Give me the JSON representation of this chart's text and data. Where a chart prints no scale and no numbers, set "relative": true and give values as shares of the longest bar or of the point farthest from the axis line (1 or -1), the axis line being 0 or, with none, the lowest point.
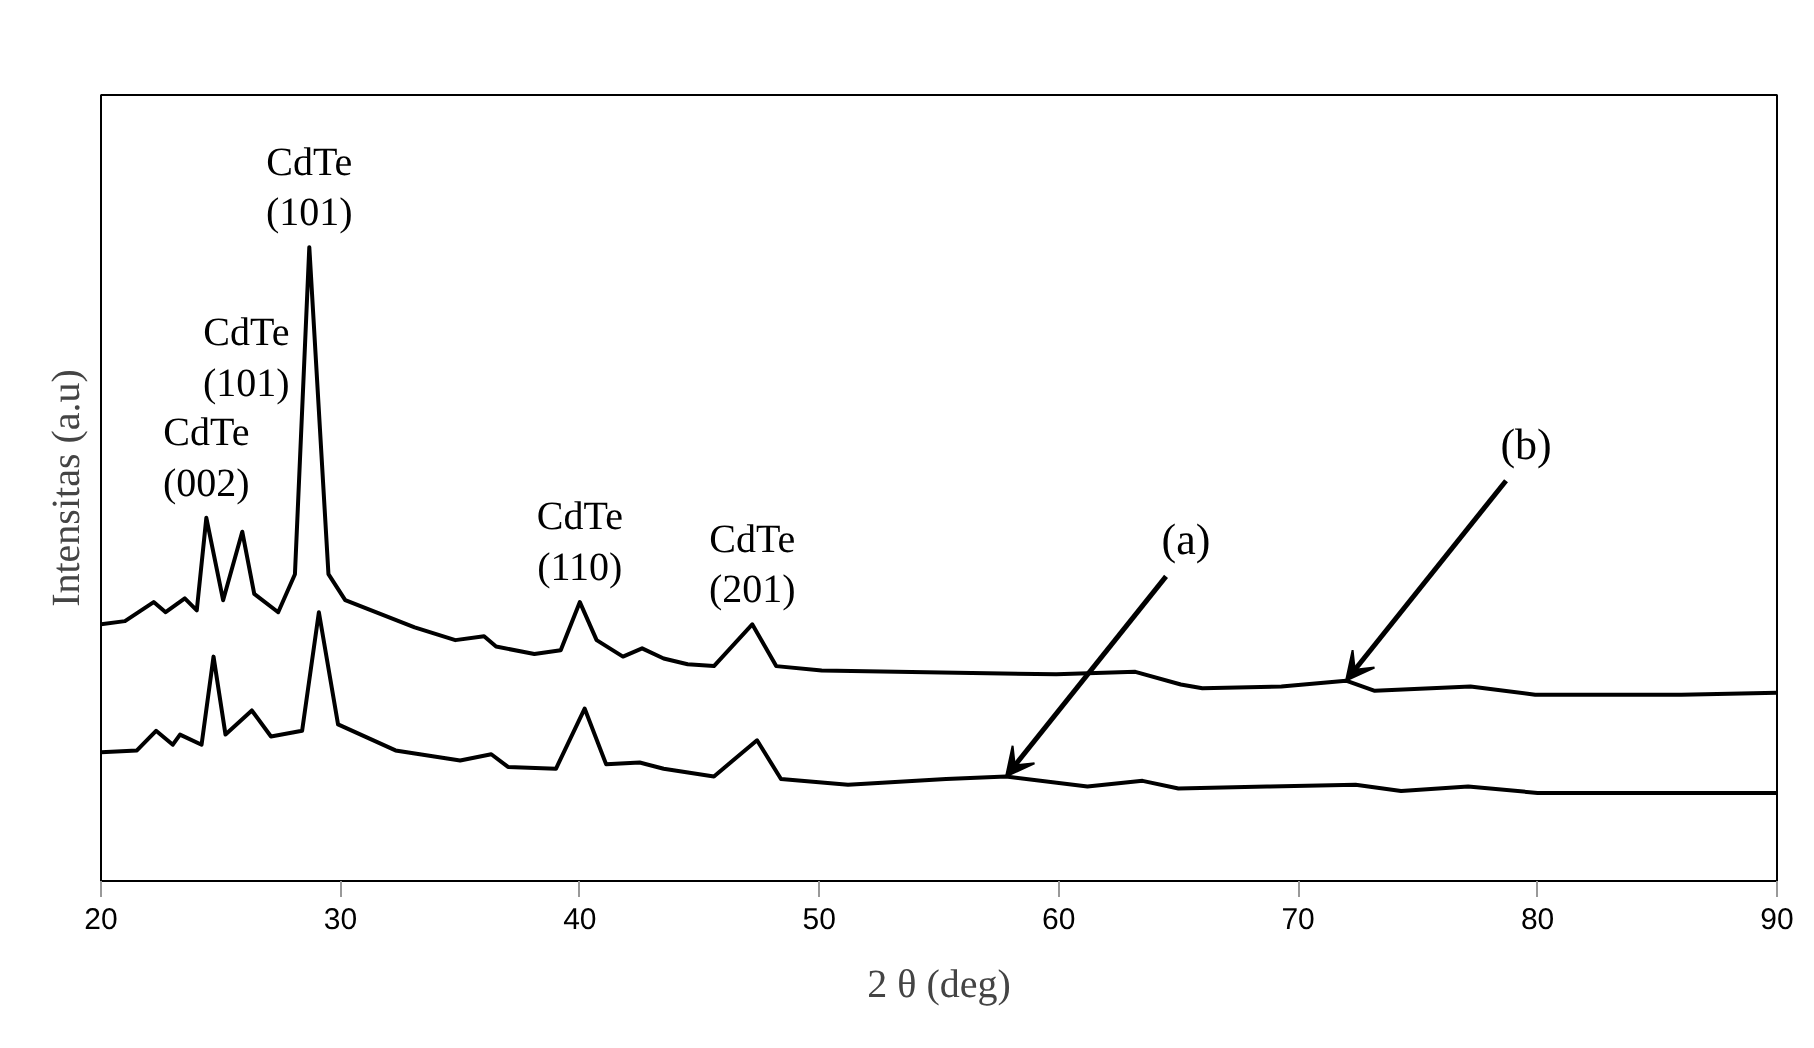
{
  "chart_data": {
    "type": "line",
    "relative": true,
    "xlabel": "2 θ (deg)",
    "ylabel": "Intensitas (a.u)",
    "xlim": [
      20,
      90
    ],
    "xticks": [
      20,
      30,
      40,
      50,
      60,
      70,
      80,
      90
    ],
    "grid": false,
    "marker": "none",
    "line_style": "solid",
    "series": [
      {
        "color": "#000000",
        "x": [
          20,
          21,
          22.2,
          22.7,
          23.5,
          24.0,
          24.4,
          25.1,
          25.9,
          26.4,
          27.4,
          28.1,
          28.7,
          29.5,
          30.2,
          33.1,
          34.8,
          36.0,
          36.5,
          38.1,
          39.2,
          40.0,
          40.7,
          41.8,
          42.6,
          43.5,
          44.5,
          45.6,
          47.2,
          48.2,
          50.1,
          55.1,
          59.9,
          63.2,
          65.1,
          66.0,
          69.3,
          72.0,
          73.2,
          77.2,
          79.9,
          86,
          90
        ],
        "values": [
          0.405,
          0.41,
          0.44,
          0.424,
          0.446,
          0.427,
          0.573,
          0.443,
          0.551,
          0.453,
          0.424,
          0.484,
          1.0,
          0.484,
          0.443,
          0.4,
          0.38,
          0.386,
          0.37,
          0.358,
          0.364,
          0.44,
          0.38,
          0.354,
          0.367,
          0.351,
          0.342,
          0.339,
          0.405,
          0.339,
          0.332,
          0.329,
          0.326,
          0.33,
          0.31,
          0.304,
          0.307,
          0.316,
          0.3,
          0.307,
          0.294,
          0.294,
          0.297
        ]
      },
      {
        "color": "#000000",
        "x": [
          20,
          21.5,
          22.3,
          23.0,
          23.3,
          24.2,
          24.7,
          25.2,
          26.3,
          27.1,
          28.4,
          29.1,
          29.9,
          32.3,
          35.0,
          36.3,
          37.0,
          39.0,
          40.2,
          41.1,
          42.5,
          43.5,
          45.6,
          47.4,
          48.4,
          51.2,
          55.3,
          57.8,
          61.2,
          63.5,
          65.0,
          68.7,
          72.4,
          74.3,
          77.1,
          80,
          90
        ],
        "values": [
          0.203,
          0.206,
          0.237,
          0.215,
          0.231,
          0.215,
          0.354,
          0.231,
          0.269,
          0.228,
          0.237,
          0.424,
          0.247,
          0.206,
          0.19,
          0.2,
          0.18,
          0.177,
          0.272,
          0.184,
          0.187,
          0.177,
          0.165,
          0.222,
          0.161,
          0.152,
          0.161,
          0.165,
          0.149,
          0.158,
          0.146,
          0.149,
          0.152,
          0.142,
          0.149,
          0.139,
          0.139
        ]
      }
    ],
    "annotations": [
      {
        "text": "CdTe\n(002)",
        "x": 24.4,
        "y": 0.573
      },
      "CdTe\n(101)",
      {
        "text": "CdTe\n(101)",
        "x": 28.7,
        "y": 1.0
      },
      {
        "text": "CdTe\n(110)",
        "x": 40.0,
        "y": 0.44
      },
      {
        "text": "CdTe\n(201)",
        "x": 47.2,
        "y": 0.405
      },
      {
        "text": "(a)",
        "x": 57.8,
        "y": 0.165
      },
      {
        "text": "(b)",
        "x": 72.0,
        "y": 0.316
      }
    ]
  }
}
